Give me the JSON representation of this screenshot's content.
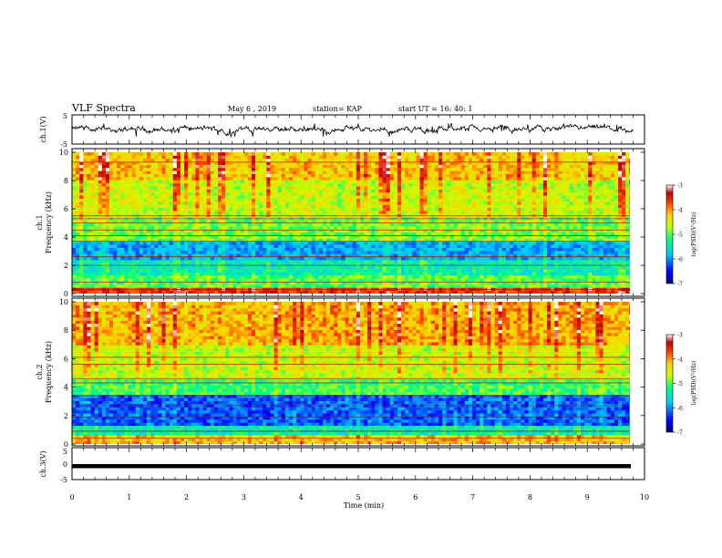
{
  "header": {
    "title": "VLF Spectra",
    "date": "May 6 , 2019",
    "station": "station= KAP",
    "start": "start UT = 16: 40: 1"
  },
  "colors": {
    "waveform": "#000000",
    "colormap": [
      "#000080",
      "#0000ff",
      "#00c8ff",
      "#00ff80",
      "#c8ff00",
      "#ffd000",
      "#ff4000",
      "#c00000",
      "#ffffff"
    ]
  },
  "chart_data": [
    {
      "type": "line",
      "panel": "ch1-waveform",
      "ylabel": "ch.1(V)",
      "ylim": [
        -5,
        5
      ],
      "yticks": [
        "5",
        "-5"
      ],
      "xlim": [
        0,
        10
      ],
      "description_values": {
        "mean": 0,
        "amplitude_range": [
          -2.2,
          1.5
        ]
      }
    },
    {
      "type": "heatmap",
      "panel": "ch1-spectrogram",
      "ylabel_line1": "ch.1",
      "ylabel_line2": "Frequency (kHz)",
      "ylim": [
        0,
        10
      ],
      "yticks": [
        "0",
        "2",
        "4",
        "6",
        "8",
        "10"
      ],
      "xlim": [
        0,
        9.8
      ],
      "colorbar": {
        "label": "log(PSD)(V²/Hz)",
        "range": [
          -7,
          -3
        ],
        "ticks": [
          "-3",
          "-4",
          "-5",
          "-6",
          "-7"
        ]
      },
      "bands": [
        {
          "fmin": 0,
          "fmax": 0.5,
          "level": -3.6
        },
        {
          "fmin": 0.5,
          "fmax": 1.2,
          "level": -5.0
        },
        {
          "fmin": 1.2,
          "fmax": 2.4,
          "level": -5.4
        },
        {
          "fmin": 2.4,
          "fmax": 3.6,
          "level": -5.9
        },
        {
          "fmin": 3.6,
          "fmax": 5.5,
          "level": -4.9
        },
        {
          "fmin": 5.5,
          "fmax": 8.0,
          "level": -4.6
        },
        {
          "fmin": 8.0,
          "fmax": 10.0,
          "level": -4.2
        }
      ],
      "lines_khz": [
        0.3,
        0.8,
        2.0,
        2.6,
        3.7,
        4.1,
        4.5,
        5.0,
        5.3,
        5.5,
        9.3
      ]
    },
    {
      "type": "heatmap",
      "panel": "ch2-spectrogram",
      "ylabel_line1": "ch.2",
      "ylabel_line2": "Frequency (kHz)",
      "ylim": [
        0,
        10
      ],
      "yticks": [
        "0",
        "2",
        "4",
        "6",
        "8",
        "10"
      ],
      "xlim": [
        0,
        9.8
      ],
      "colorbar": {
        "label": "log(PSD)(V²/Hz)",
        "range": [
          -7,
          -3
        ],
        "ticks": [
          "-3",
          "-4",
          "-5",
          "-6",
          "-7"
        ]
      },
      "bands": [
        {
          "fmin": 0,
          "fmax": 0.6,
          "level": -4.2
        },
        {
          "fmin": 0.6,
          "fmax": 1.4,
          "level": -5.4
        },
        {
          "fmin": 1.4,
          "fmax": 3.4,
          "level": -6.2
        },
        {
          "fmin": 3.4,
          "fmax": 4.6,
          "level": -5.1
        },
        {
          "fmin": 4.6,
          "fmax": 7.0,
          "level": -4.6
        },
        {
          "fmin": 7.0,
          "fmax": 10.0,
          "level": -4.1
        }
      ],
      "lines_khz": [
        0.4,
        0.9,
        1.9,
        2.7,
        3.4,
        4.3,
        4.6,
        5.6,
        6.1
      ]
    },
    {
      "type": "line",
      "panel": "ch3-waveform",
      "ylabel": "ch.3(V)",
      "ylim": [
        -5,
        5
      ],
      "yticks": [
        "5",
        "0",
        "-5"
      ],
      "xlim": [
        0,
        10
      ],
      "xlabel": "Time (min)",
      "xticks": [
        "0",
        "1",
        "2",
        "3",
        "4",
        "5",
        "6",
        "7",
        "8",
        "9",
        "10"
      ],
      "description_values": {
        "constant": -0.3,
        "xrange": [
          0,
          9.8
        ]
      }
    }
  ]
}
